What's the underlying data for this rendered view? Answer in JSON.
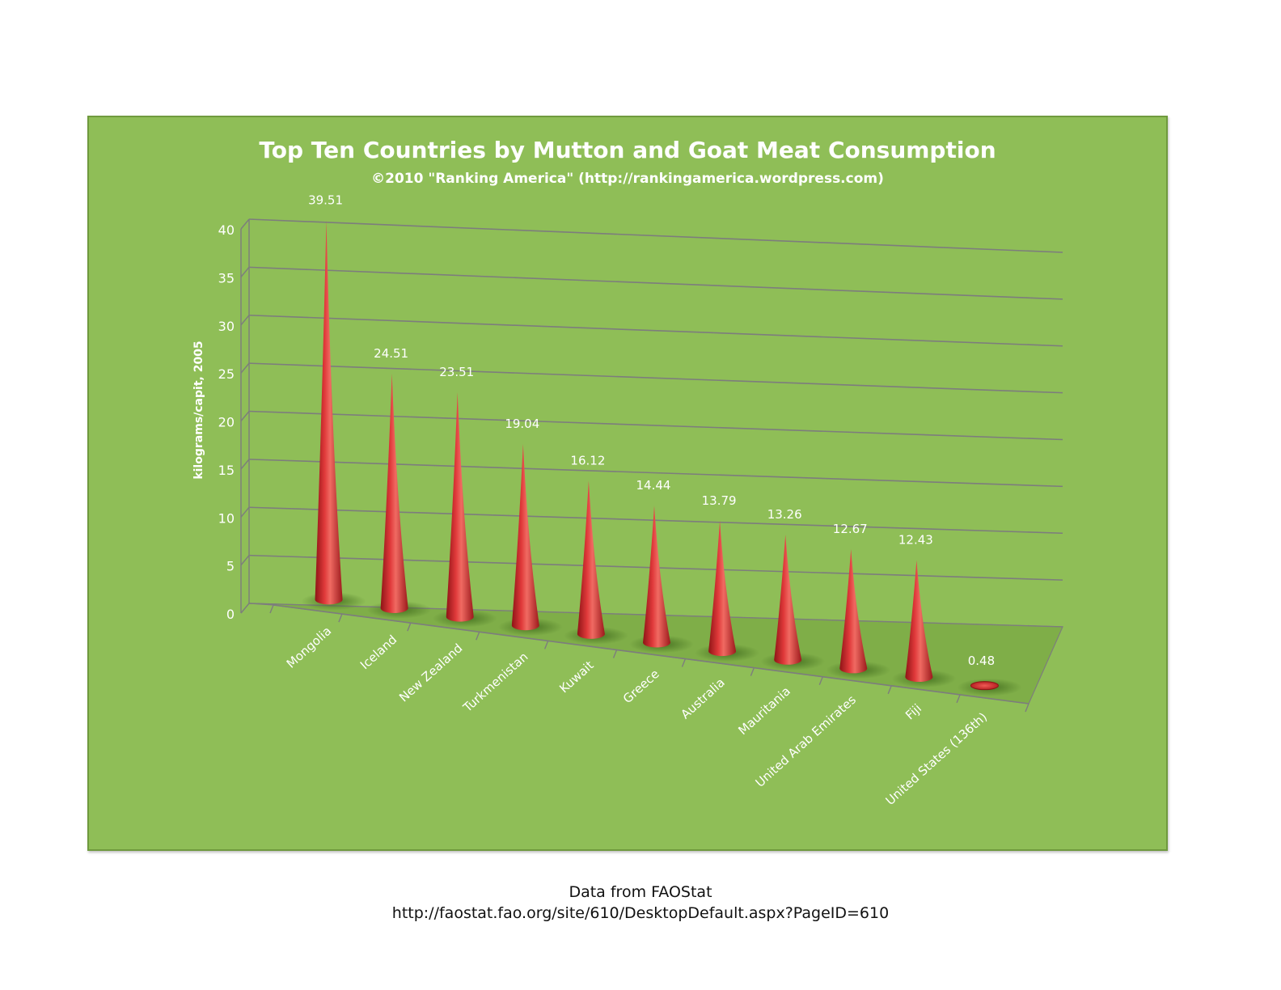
{
  "chart_data": {
    "type": "bar",
    "title": "Top Ten Countries by Mutton and Goat Meat Consumption",
    "subtitle": "©2010 \"Ranking America\" (http://rankingamerica.wordpress.com)",
    "ylabel": "kilograms/capit, 2005",
    "xlabel": "",
    "ylim": [
      0,
      40
    ],
    "yticks": [
      0,
      5,
      10,
      15,
      20,
      25,
      30,
      35,
      40
    ],
    "categories": [
      "Mongolia",
      "Iceland",
      "New Zealand",
      "Turkmenistan",
      "Kuwait",
      "Greece",
      "Australia",
      "Mauritania",
      "United Arab Emirates",
      "Fiji",
      "United States (136th)"
    ],
    "values": [
      39.51,
      24.51,
      23.51,
      19.04,
      16.12,
      14.44,
      13.79,
      13.26,
      12.67,
      12.43,
      0.48
    ],
    "value_labels": [
      "39.51",
      "24.51",
      "23.51",
      "19.04",
      "16.12",
      "14.44",
      "13.79",
      "13.26",
      "12.67",
      "12.43",
      "0.48"
    ],
    "grid": true,
    "style": "3d-cone",
    "colors": {
      "background": "#8fbe57",
      "cone": "#e0393a",
      "grid": "#7d7d7d",
      "text": "#ffffff"
    }
  },
  "footer": {
    "source": "Data from FAOStat",
    "url": "http://faostat.fao.org/site/610/DesktopDefault.aspx?PageID=610"
  }
}
